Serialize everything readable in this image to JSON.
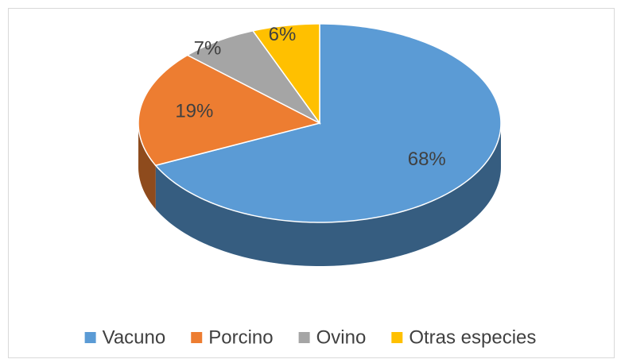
{
  "chart_data": {
    "type": "pie",
    "categories": [
      "Vacuno",
      "Porcino",
      "Ovino",
      "Otras especies"
    ],
    "values": [
      68,
      19,
      7,
      6
    ],
    "value_labels": [
      "68%",
      "19%",
      "7%",
      "6%"
    ],
    "colors": [
      "#5b9bd5",
      "#ed7d31",
      "#a5a5a5",
      "#ffc000"
    ],
    "legend": "bottom"
  }
}
